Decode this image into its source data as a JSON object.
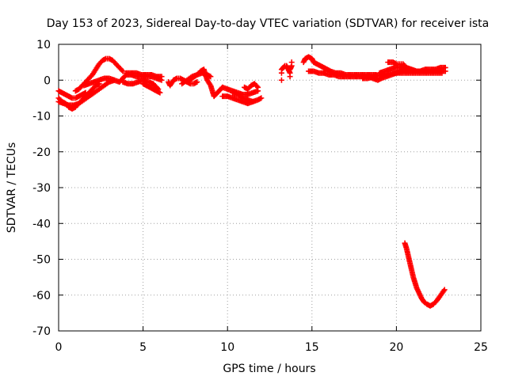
{
  "chart_data": {
    "type": "scatter",
    "title": "Day 153 of 2023, Sidereal Day-to-day VTEC variation (SDTVAR) for receiver ista",
    "xlabel": "GPS time / hours",
    "ylabel": "SDTVAR / TECUs",
    "xlim": [
      0,
      25
    ],
    "ylim": [
      -70,
      10
    ],
    "xticks": [
      0,
      5,
      10,
      15,
      20,
      25
    ],
    "yticks": [
      -70,
      -60,
      -50,
      -40,
      -30,
      -20,
      -10,
      0,
      10
    ],
    "grid": true,
    "marker": "+",
    "series_color": "#ff0000",
    "series": [
      {
        "name": "SDTVAR",
        "points": [
          [
            0.0,
            -3.0
          ],
          [
            0.2,
            -3.5
          ],
          [
            0.4,
            -4.0
          ],
          [
            0.6,
            -4.5
          ],
          [
            0.8,
            -5.0
          ],
          [
            1.0,
            -5.0
          ],
          [
            1.2,
            -4.5
          ],
          [
            1.4,
            -4.0
          ],
          [
            1.6,
            -3.5
          ],
          [
            0.0,
            -6.0
          ],
          [
            0.3,
            -6.5
          ],
          [
            0.6,
            -7.0
          ],
          [
            0.9,
            -7.0
          ],
          [
            1.2,
            -6.5
          ],
          [
            1.5,
            -5.5
          ],
          [
            1.8,
            -4.5
          ],
          [
            2.1,
            -3.5
          ],
          [
            2.4,
            -2.5
          ],
          [
            2.7,
            -1.5
          ],
          [
            3.0,
            -0.5
          ],
          [
            3.3,
            0.0
          ],
          [
            0.0,
            -5.0
          ],
          [
            0.2,
            -6.0
          ],
          [
            0.4,
            -6.5
          ],
          [
            0.6,
            -7.5
          ],
          [
            0.8,
            -8.0
          ],
          [
            1.0,
            -7.5
          ],
          [
            1.2,
            -6.5
          ],
          [
            1.4,
            -5.5
          ],
          [
            1.6,
            -4.5
          ],
          [
            1.8,
            -3.5
          ],
          [
            2.0,
            -2.5
          ],
          [
            2.2,
            -1.5
          ],
          [
            2.4,
            -1.0
          ],
          [
            1.0,
            -3.0
          ],
          [
            1.2,
            -2.5
          ],
          [
            1.4,
            -1.5
          ],
          [
            1.6,
            -0.5
          ],
          [
            1.8,
            0.5
          ],
          [
            2.0,
            1.5
          ],
          [
            2.2,
            3.0
          ],
          [
            2.4,
            4.5
          ],
          [
            2.6,
            5.5
          ],
          [
            2.8,
            6.0
          ],
          [
            3.0,
            6.0
          ],
          [
            3.2,
            5.5
          ],
          [
            3.4,
            4.5
          ],
          [
            3.6,
            3.5
          ],
          [
            3.8,
            2.5
          ],
          [
            1.5,
            -1.5
          ],
          [
            1.8,
            -1.0
          ],
          [
            2.1,
            -0.5
          ],
          [
            2.4,
            0.0
          ],
          [
            2.7,
            0.5
          ],
          [
            3.0,
            0.5
          ],
          [
            3.3,
            0.0
          ],
          [
            3.6,
            -0.5
          ],
          [
            4.0,
            1.5
          ],
          [
            4.3,
            1.5
          ],
          [
            4.6,
            1.0
          ],
          [
            4.9,
            1.0
          ],
          [
            5.2,
            1.0
          ],
          [
            5.5,
            1.0
          ],
          [
            5.8,
            0.5
          ],
          [
            6.1,
            0.0
          ],
          [
            3.8,
            -0.5
          ],
          [
            4.1,
            -1.0
          ],
          [
            4.4,
            -1.0
          ],
          [
            4.7,
            -0.5
          ],
          [
            5.0,
            0.0
          ],
          [
            5.3,
            -0.5
          ],
          [
            5.6,
            -1.0
          ],
          [
            5.9,
            -2.5
          ],
          [
            4.0,
            2.0
          ],
          [
            4.3,
            2.0
          ],
          [
            4.6,
            2.0
          ],
          [
            4.9,
            1.5
          ],
          [
            5.2,
            1.5
          ],
          [
            5.5,
            1.5
          ],
          [
            5.8,
            1.0
          ],
          [
            6.1,
            1.0
          ],
          [
            5.0,
            -1.0
          ],
          [
            5.2,
            -1.5
          ],
          [
            5.4,
            -2.0
          ],
          [
            5.6,
            -2.5
          ],
          [
            5.8,
            -3.0
          ],
          [
            6.0,
            -3.5
          ],
          [
            6.5,
            -0.5
          ],
          [
            6.6,
            -1.5
          ],
          [
            6.8,
            0.0
          ],
          [
            7.0,
            0.5
          ],
          [
            7.2,
            0.5
          ],
          [
            7.4,
            0.0
          ],
          [
            7.6,
            -0.5
          ],
          [
            7.8,
            -1.0
          ],
          [
            8.0,
            -1.0
          ],
          [
            8.2,
            -0.5
          ],
          [
            7.3,
            -1.0
          ],
          [
            7.6,
            0.0
          ],
          [
            7.9,
            1.0
          ],
          [
            8.2,
            1.5
          ],
          [
            8.5,
            2.0
          ],
          [
            8.8,
            1.5
          ],
          [
            9.0,
            1.0
          ],
          [
            7.6,
            -0.5
          ],
          [
            7.9,
            0.5
          ],
          [
            8.2,
            1.5
          ],
          [
            8.4,
            2.5
          ],
          [
            8.6,
            3.0
          ],
          [
            8.8,
            0.0
          ],
          [
            9.0,
            -1.5
          ],
          [
            9.1,
            -3.0
          ],
          [
            9.2,
            -4.5
          ],
          [
            9.7,
            -2.0
          ],
          [
            10.0,
            -2.5
          ],
          [
            10.3,
            -3.0
          ],
          [
            10.6,
            -3.5
          ],
          [
            10.9,
            -4.0
          ],
          [
            11.2,
            -4.0
          ],
          [
            11.5,
            -3.5
          ],
          [
            11.8,
            -3.0
          ],
          [
            9.7,
            -4.5
          ],
          [
            10.0,
            -4.5
          ],
          [
            10.3,
            -5.0
          ],
          [
            10.6,
            -5.5
          ],
          [
            10.9,
            -6.0
          ],
          [
            11.2,
            -6.5
          ],
          [
            11.5,
            -6.0
          ],
          [
            11.8,
            -5.5
          ],
          [
            12.0,
            -5.0
          ],
          [
            10.3,
            -3.5
          ],
          [
            10.6,
            -4.0
          ],
          [
            10.9,
            -5.0
          ],
          [
            11.2,
            -5.5
          ],
          [
            11.5,
            -6.0
          ],
          [
            11.0,
            -2.0
          ],
          [
            11.2,
            -2.5
          ],
          [
            11.4,
            -1.5
          ],
          [
            11.6,
            -1.0
          ],
          [
            11.8,
            -2.0
          ],
          [
            13.2,
            0.0
          ],
          [
            13.2,
            2.0
          ],
          [
            13.2,
            3.0
          ],
          [
            13.3,
            3.5
          ],
          [
            13.4,
            4.0
          ],
          [
            13.5,
            4.0
          ],
          [
            13.7,
            2.0
          ],
          [
            13.7,
            3.0
          ],
          [
            13.8,
            4.0
          ],
          [
            13.8,
            5.0
          ],
          [
            13.7,
            1.0
          ],
          [
            14.5,
            5.0
          ],
          [
            14.6,
            6.0
          ],
          [
            14.8,
            6.5
          ],
          [
            15.0,
            6.0
          ],
          [
            15.1,
            5.0
          ],
          [
            15.3,
            4.5
          ],
          [
            15.5,
            4.0
          ],
          [
            15.7,
            3.5
          ],
          [
            15.9,
            3.0
          ],
          [
            16.1,
            2.5
          ],
          [
            16.4,
            2.0
          ],
          [
            16.7,
            2.0
          ],
          [
            17.0,
            1.5
          ],
          [
            17.3,
            1.5
          ],
          [
            17.6,
            1.5
          ],
          [
            17.9,
            1.5
          ],
          [
            18.2,
            1.5
          ],
          [
            18.5,
            1.5
          ],
          [
            18.8,
            1.5
          ],
          [
            14.8,
            2.5
          ],
          [
            15.1,
            2.5
          ],
          [
            15.4,
            2.0
          ],
          [
            15.7,
            2.0
          ],
          [
            16.0,
            1.5
          ],
          [
            16.3,
            1.5
          ],
          [
            16.6,
            1.0
          ],
          [
            16.9,
            1.0
          ],
          [
            17.2,
            1.0
          ],
          [
            17.5,
            1.0
          ],
          [
            17.8,
            1.0
          ],
          [
            18.1,
            1.0
          ],
          [
            18.4,
            1.0
          ],
          [
            18.6,
            0.5
          ],
          [
            18.9,
            0.0
          ],
          [
            19.1,
            0.5
          ],
          [
            19.4,
            1.0
          ],
          [
            19.7,
            1.5
          ],
          [
            20.0,
            2.0
          ],
          [
            20.3,
            2.5
          ],
          [
            20.6,
            2.5
          ],
          [
            20.9,
            2.5
          ],
          [
            21.2,
            2.5
          ],
          [
            21.5,
            2.5
          ],
          [
            21.8,
            2.5
          ],
          [
            22.1,
            2.5
          ],
          [
            22.4,
            2.5
          ],
          [
            22.7,
            2.5
          ],
          [
            22.9,
            2.5
          ],
          [
            19.5,
            5.0
          ],
          [
            19.8,
            5.0
          ],
          [
            20.0,
            4.5
          ],
          [
            20.2,
            4.5
          ],
          [
            20.4,
            4.5
          ],
          [
            20.6,
            3.5
          ],
          [
            20.9,
            3.0
          ],
          [
            21.2,
            2.5
          ],
          [
            19.0,
            2.0
          ],
          [
            19.3,
            2.5
          ],
          [
            19.6,
            3.0
          ],
          [
            19.9,
            3.5
          ],
          [
            20.2,
            3.5
          ],
          [
            20.5,
            3.5
          ],
          [
            20.8,
            3.0
          ],
          [
            21.1,
            2.5
          ],
          [
            21.4,
            2.5
          ],
          [
            21.7,
            3.0
          ],
          [
            22.0,
            3.0
          ],
          [
            22.3,
            3.0
          ],
          [
            22.6,
            3.5
          ],
          [
            22.9,
            3.5
          ],
          [
            18.0,
            0.5
          ],
          [
            18.3,
            0.5
          ],
          [
            18.7,
            1.0
          ],
          [
            19.2,
            1.5
          ],
          [
            19.7,
            2.0
          ],
          [
            20.2,
            2.0
          ],
          [
            20.7,
            2.0
          ],
          [
            21.2,
            2.0
          ],
          [
            21.7,
            2.0
          ],
          [
            22.2,
            2.0
          ],
          [
            22.7,
            2.0
          ],
          [
            20.5,
            -45.5
          ],
          [
            20.6,
            -47.0
          ],
          [
            20.7,
            -49.0
          ],
          [
            20.8,
            -51.0
          ],
          [
            20.9,
            -53.0
          ],
          [
            21.0,
            -55.0
          ],
          [
            21.1,
            -56.5
          ],
          [
            21.2,
            -58.0
          ],
          [
            21.35,
            -59.5
          ],
          [
            21.5,
            -61.0
          ],
          [
            21.65,
            -62.0
          ],
          [
            21.8,
            -62.5
          ],
          [
            22.0,
            -63.0
          ],
          [
            22.2,
            -62.5
          ],
          [
            22.4,
            -61.5
          ],
          [
            22.55,
            -60.5
          ],
          [
            22.7,
            -59.5
          ],
          [
            22.85,
            -58.5
          ]
        ]
      }
    ]
  }
}
